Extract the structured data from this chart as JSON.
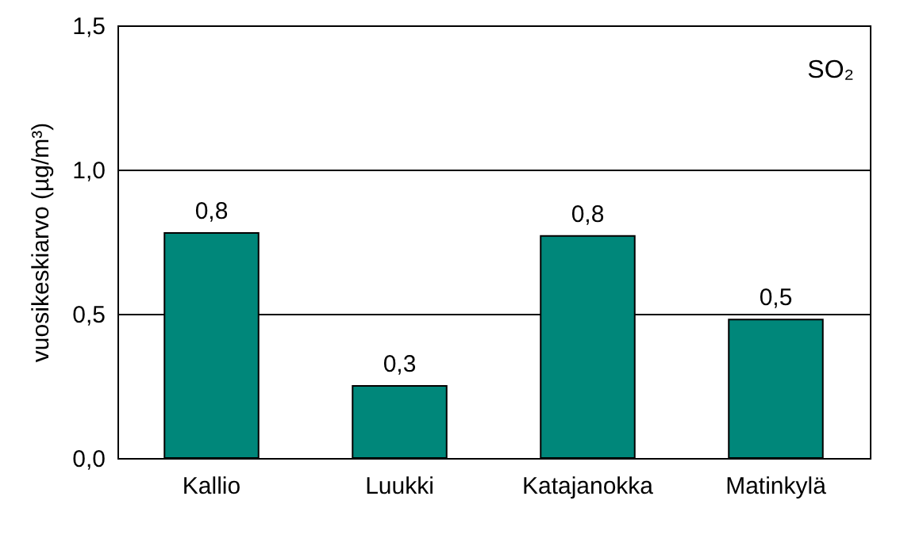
{
  "chart_data": {
    "type": "bar",
    "ylabel": "vuosikeskiarvo (µg/m³)",
    "annotations": [
      "SO₂"
    ],
    "categories": [
      "Kallio",
      "Luukki",
      "Katajanokka",
      "Matinkylä"
    ],
    "values": [
      0.78,
      0.25,
      0.77,
      0.48
    ],
    "value_labels": [
      "0,8",
      "0,3",
      "0,8",
      "0,5"
    ],
    "color": "#00877a",
    "ylim": [
      0,
      1.5
    ],
    "yticks": [
      {
        "value": 0,
        "label": "0,0"
      },
      {
        "value": 0.5,
        "label": "0,5"
      },
      {
        "value": 1,
        "label": "1,0"
      },
      {
        "value": 1.5,
        "label": "1,5"
      }
    ],
    "grid": "y"
  }
}
